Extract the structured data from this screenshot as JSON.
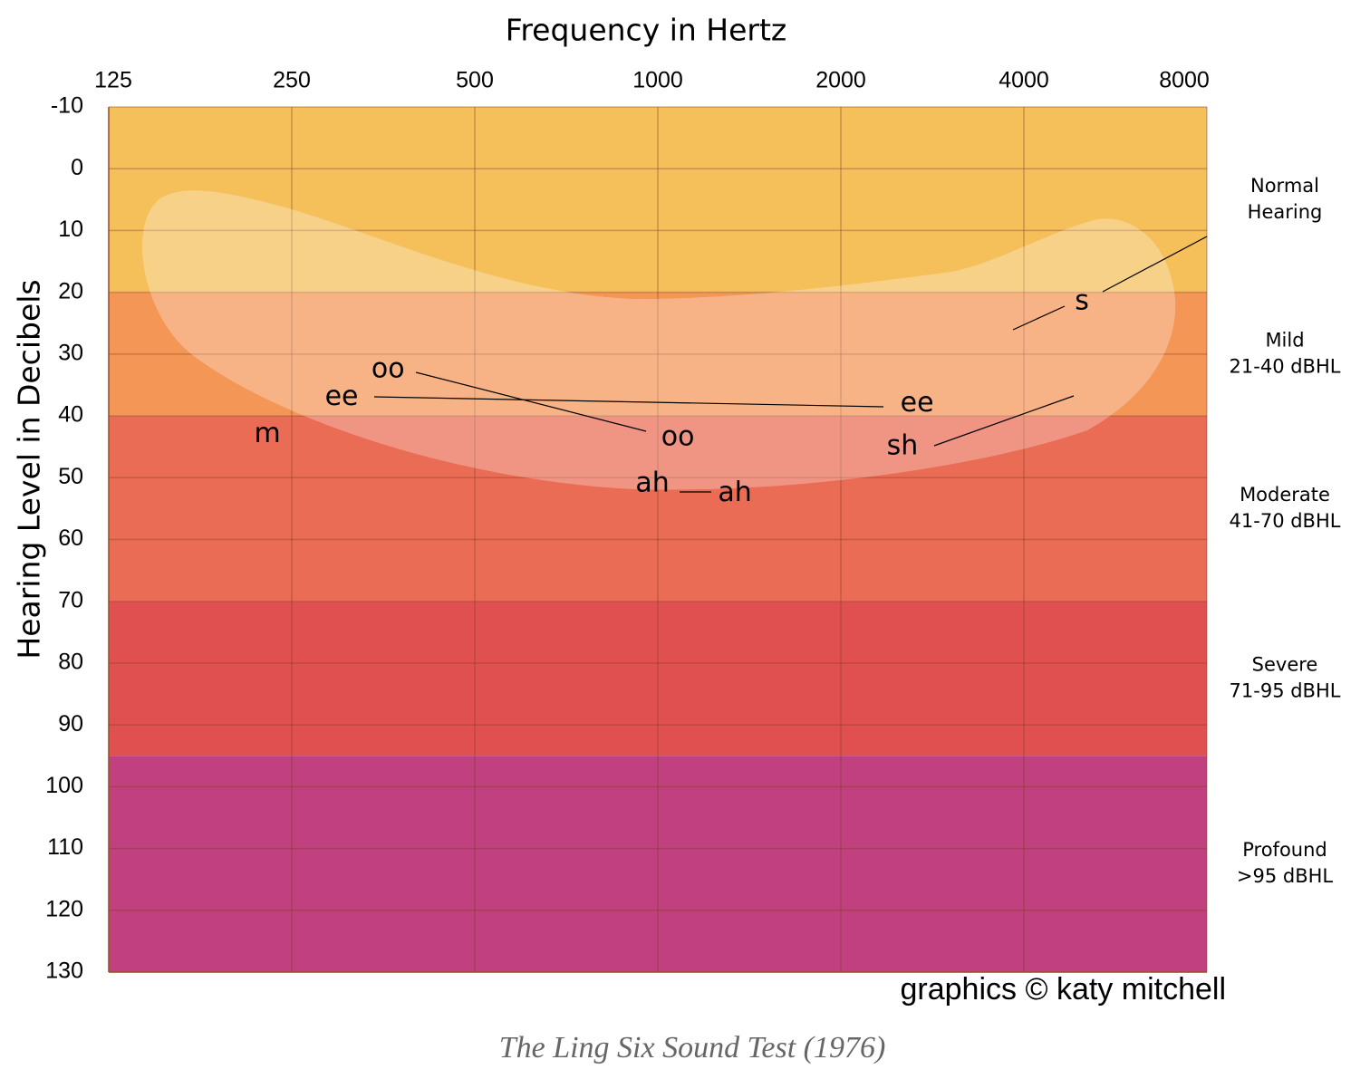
{
  "chart_data": {
    "type": "audiogram",
    "title": "Frequency in Hertz",
    "y_label": "Hearing Level in Decibels",
    "credit": "graphics © katy mitchell",
    "caption": "The Ling Six Sound Test (1976)",
    "xscale": "log",
    "xlim": [
      125,
      8000
    ],
    "xticks": [
      125,
      250,
      500,
      1000,
      2000,
      4000,
      8000
    ],
    "ylim": [
      -10,
      130
    ],
    "y_reversed": true,
    "yticks": [
      -10,
      0,
      10,
      20,
      30,
      40,
      50,
      60,
      70,
      80,
      90,
      100,
      110,
      120,
      130
    ],
    "grid": true,
    "bands": [
      {
        "label_lines": [
          "Normal",
          "Hearing"
        ],
        "from": -10,
        "to": 20,
        "color": "#f5bf5a"
      },
      {
        "label_lines": [
          "Mild",
          "21-40 dBHL"
        ],
        "from": 20,
        "to": 40,
        "color": "#f49656"
      },
      {
        "label_lines": [
          "Moderate",
          "41-70 dBHL"
        ],
        "from": 40,
        "to": 70,
        "color": "#ea6c55"
      },
      {
        "label_lines": [
          "Severe",
          "71-95 dBHL"
        ],
        "from": 70,
        "to": 95,
        "color": "#e05050"
      },
      {
        "label_lines": [
          "Profound",
          ">95 dBHL"
        ],
        "from": 95,
        "to": 130,
        "color": "#c04080"
      }
    ],
    "sounds": [
      {
        "label": "m",
        "x": 228,
        "y": 43
      },
      {
        "label": "ee",
        "x": 302,
        "y": 37
      },
      {
        "label": "oo",
        "x": 360,
        "y": 32.5
      },
      {
        "label": "oo",
        "x": 1079,
        "y": 43.5
      },
      {
        "label": "ah",
        "x": 980,
        "y": 51
      },
      {
        "label": "ah",
        "x": 1339,
        "y": 52.5
      },
      {
        "label": "ee",
        "x": 2669,
        "y": 38
      },
      {
        "label": "sh",
        "x": 2525,
        "y": 45
      },
      {
        "label": "s",
        "x": 4984,
        "y": 21.5
      }
    ]
  }
}
